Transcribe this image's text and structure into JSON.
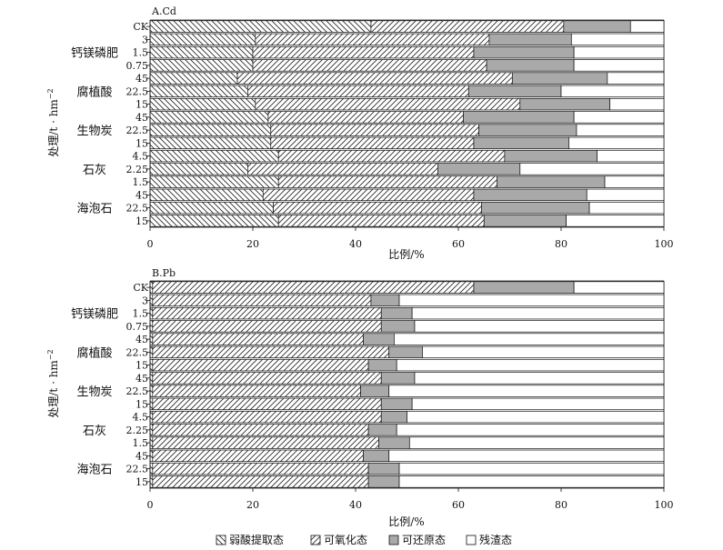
{
  "legend": [
    "弱酸提取态",
    "可氧化态",
    "可还原态",
    "残渣态"
  ],
  "chart_data": [
    {
      "type": "bar",
      "stacked": true,
      "orientation": "horizontal",
      "title": "A.Cd",
      "xlabel": "比例/%",
      "ylabel": "处理/t · hm",
      "ylabel_sup": "−2",
      "xlim": [
        0,
        100
      ],
      "xticks": [
        "0",
        "20",
        "40",
        "60",
        "80",
        "100"
      ],
      "categories": [
        "CK",
        "3",
        "1.5",
        "0.75",
        "45",
        "22.5",
        "15",
        "45",
        "22.5",
        "15",
        "4.5",
        "2.25",
        "1.5",
        "45",
        "22.5",
        "15"
      ],
      "groups": [
        {
          "label": "钙镁磷肥",
          "start": 1,
          "end": 3
        },
        {
          "label": "腐植酸",
          "start": 4,
          "end": 6
        },
        {
          "label": "生物炭",
          "start": 7,
          "end": 9
        },
        {
          "label": "石灰",
          "start": 10,
          "end": 12
        },
        {
          "label": "海泡石",
          "start": 13,
          "end": 15
        }
      ],
      "series": [
        {
          "name": "弱酸提取态",
          "values": [
            43,
            20.5,
            20,
            20,
            17,
            19,
            20.5,
            23,
            23.5,
            23.5,
            25,
            19,
            25,
            22,
            24,
            25
          ]
        },
        {
          "name": "可氧化态",
          "values": [
            37.5,
            45.5,
            43,
            45.5,
            53.5,
            43,
            51.5,
            38,
            40.5,
            39.5,
            44,
            37,
            42.5,
            41,
            40.5,
            40
          ]
        },
        {
          "name": "可还原态",
          "values": [
            13,
            16,
            19.5,
            17,
            18.5,
            18,
            17.5,
            21.5,
            19,
            18.5,
            18,
            16,
            21,
            22,
            21,
            16
          ]
        },
        {
          "name": "残渣态",
          "values": [
            6.5,
            18,
            17.5,
            17.5,
            11,
            20,
            10.5,
            17.5,
            17,
            18.5,
            13,
            28,
            11.5,
            15,
            14.5,
            19
          ]
        }
      ]
    },
    {
      "type": "bar",
      "stacked": true,
      "orientation": "horizontal",
      "title": "B.Pb",
      "xlabel": "比例/%",
      "ylabel": "处理/t · hm",
      "ylabel_sup": "−2",
      "xlim": [
        0,
        100
      ],
      "xticks": [
        "0",
        "20",
        "40",
        "60",
        "80",
        "100"
      ],
      "categories": [
        "CK",
        "3",
        "1.5",
        "0.75",
        "45",
        "22.5",
        "15",
        "45",
        "22.5",
        "15",
        "4.5",
        "2.25",
        "1.5",
        "45",
        "22.5",
        "15"
      ],
      "groups": [
        {
          "label": "钙镁磷肥",
          "start": 1,
          "end": 3
        },
        {
          "label": "腐植酸",
          "start": 4,
          "end": 6
        },
        {
          "label": "生物炭",
          "start": 7,
          "end": 9
        },
        {
          "label": "石灰",
          "start": 10,
          "end": 12
        },
        {
          "label": "海泡石",
          "start": 13,
          "end": 15
        }
      ],
      "series": [
        {
          "name": "弱酸提取态",
          "values": [
            0.5,
            0.5,
            0.5,
            0.5,
            0.5,
            0.5,
            0.5,
            0.5,
            0.5,
            0.5,
            0.5,
            0.5,
            0.5,
            0.5,
            0.5,
            0.5
          ]
        },
        {
          "name": "可氧化态",
          "values": [
            62.5,
            42.5,
            44.5,
            44.5,
            41,
            46,
            42,
            44.5,
            40.5,
            44.5,
            44.5,
            42,
            44,
            41,
            42,
            42
          ]
        },
        {
          "name": "可还原态",
          "values": [
            19.5,
            5.5,
            6,
            6.5,
            6,
            6.5,
            5.5,
            6.5,
            5.5,
            6,
            5,
            5.5,
            6,
            5,
            6,
            6
          ]
        },
        {
          "name": "残渣态",
          "values": [
            17.5,
            51.5,
            49,
            48.5,
            52.5,
            47,
            52,
            48.5,
            53.5,
            49,
            50,
            52,
            49.5,
            53.5,
            51.5,
            51.5
          ]
        }
      ]
    }
  ]
}
